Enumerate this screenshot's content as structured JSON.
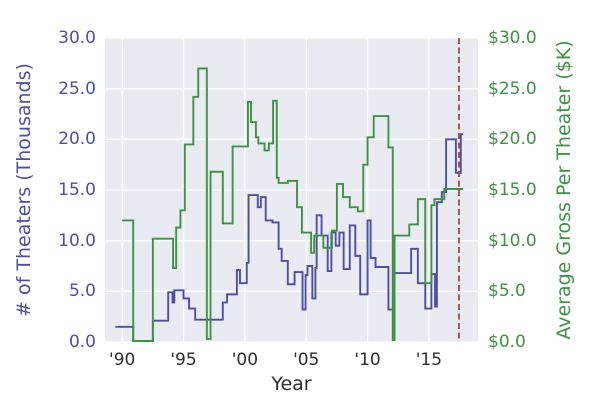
{
  "figure": {
    "background": "#ffffff",
    "plot_background": "#eaeaf2",
    "gridline_color": "#ffffff"
  },
  "chart_data": {
    "type": "line",
    "subtype": "step-post",
    "title": "",
    "xlabel": "Year",
    "ylabel_left": "# of Theaters (Thousands)",
    "ylabel_right": "Average Gross Per Theater ($K)",
    "xlim": [
      1988.6,
      2019.0
    ],
    "ylim_left": [
      0,
      30
    ],
    "ylim_right": [
      0,
      30
    ],
    "grid": true,
    "legend": "none",
    "x_ticks": [
      {
        "value": 1990,
        "label": "'90"
      },
      {
        "value": 1995,
        "label": "'95"
      },
      {
        "value": 2000,
        "label": "'00"
      },
      {
        "value": 2005,
        "label": "'05"
      },
      {
        "value": 2010,
        "label": "'10"
      },
      {
        "value": 2015,
        "label": "'15"
      }
    ],
    "y_ticks_left": [
      {
        "value": 0,
        "label": "0.0"
      },
      {
        "value": 5,
        "label": "5.0"
      },
      {
        "value": 10,
        "label": "10.0"
      },
      {
        "value": 15,
        "label": "15.0"
      },
      {
        "value": 20,
        "label": "20.0"
      },
      {
        "value": 25,
        "label": "25.0"
      },
      {
        "value": 30,
        "label": "30.0"
      }
    ],
    "y_ticks_right": [
      {
        "value": 0,
        "label": "$0.0"
      },
      {
        "value": 5,
        "label": "$5.0"
      },
      {
        "value": 10,
        "label": "$10.0"
      },
      {
        "value": 15,
        "label": "$15.0"
      },
      {
        "value": 20,
        "label": "$20.0"
      },
      {
        "value": 25,
        "label": "$25.0"
      },
      {
        "value": 30,
        "label": "$30.0"
      }
    ],
    "series": [
      {
        "name": "# of Theaters (Thousands)",
        "axis": "left",
        "color": "#4e4fa2",
        "points": [
          [
            1989.45,
            1.5
          ],
          [
            1990.9,
            0.1
          ],
          [
            1992.5,
            2.1
          ],
          [
            1993.75,
            4.9
          ],
          [
            1994.1,
            3.9
          ],
          [
            1994.25,
            5.1
          ],
          [
            1995.0,
            4.3
          ],
          [
            1995.45,
            3.3
          ],
          [
            1995.95,
            2.2
          ],
          [
            1998.2,
            3.9
          ],
          [
            1998.55,
            4.7
          ],
          [
            1999.35,
            7.1
          ],
          [
            1999.6,
            5.8
          ],
          [
            2000.15,
            7.8
          ],
          [
            2000.3,
            14.5
          ],
          [
            2001.05,
            13.3
          ],
          [
            2001.3,
            14.3
          ],
          [
            2001.7,
            12.0
          ],
          [
            2002.25,
            11.8
          ],
          [
            2002.75,
            9.2
          ],
          [
            2003.0,
            8.0
          ],
          [
            2003.5,
            5.7
          ],
          [
            2004.05,
            6.9
          ],
          [
            2004.7,
            3.2
          ],
          [
            2004.95,
            6.6
          ],
          [
            2005.1,
            7.5
          ],
          [
            2005.5,
            4.3
          ],
          [
            2005.75,
            7.3
          ],
          [
            2005.85,
            12.5
          ],
          [
            2006.25,
            10.5
          ],
          [
            2006.75,
            7.0
          ],
          [
            2007.05,
            10.8
          ],
          [
            2007.4,
            9.5
          ],
          [
            2007.7,
            10.8
          ],
          [
            2008.05,
            7.2
          ],
          [
            2008.55,
            11.5
          ],
          [
            2009.0,
            8.5
          ],
          [
            2009.4,
            4.7
          ],
          [
            2010.0,
            12.0
          ],
          [
            2010.25,
            8.3
          ],
          [
            2010.65,
            7.4
          ],
          [
            2011.7,
            3.2
          ],
          [
            2012.1,
            6.8
          ],
          [
            2013.55,
            9.2
          ],
          [
            2014.1,
            5.8
          ],
          [
            2014.7,
            3.3
          ],
          [
            2015.2,
            6.7
          ],
          [
            2015.5,
            3.5
          ],
          [
            2015.65,
            13.8
          ],
          [
            2016.05,
            14.8
          ],
          [
            2016.4,
            20.0
          ],
          [
            2017.2,
            16.7
          ],
          [
            2017.6,
            20.5
          ],
          [
            2017.78,
            20.5
          ]
        ]
      },
      {
        "name": "Average Gross Per Theater ($K)",
        "axis": "right",
        "color": "#3e9245",
        "points": [
          [
            1990.0,
            12.0
          ],
          [
            1990.9,
            0.1
          ],
          [
            1992.5,
            10.2
          ],
          [
            1994.15,
            7.3
          ],
          [
            1994.4,
            11.3
          ],
          [
            1994.75,
            13.0
          ],
          [
            1995.1,
            19.5
          ],
          [
            1995.8,
            24.2
          ],
          [
            1996.2,
            27.0
          ],
          [
            1996.9,
            0.3
          ],
          [
            1997.2,
            16.8
          ],
          [
            1998.2,
            11.7
          ],
          [
            1999.0,
            19.3
          ],
          [
            2000.25,
            23.7
          ],
          [
            2000.5,
            21.7
          ],
          [
            2000.9,
            20.2
          ],
          [
            2001.1,
            19.6
          ],
          [
            2001.6,
            18.9
          ],
          [
            2001.95,
            19.6
          ],
          [
            2002.3,
            23.8
          ],
          [
            2002.6,
            16.2
          ],
          [
            2002.75,
            15.7
          ],
          [
            2003.5,
            15.9
          ],
          [
            2004.25,
            13.3
          ],
          [
            2004.65,
            10.8
          ],
          [
            2005.4,
            8.8
          ],
          [
            2005.65,
            10.5
          ],
          [
            2006.4,
            9.3
          ],
          [
            2007.1,
            11.0
          ],
          [
            2007.5,
            15.6
          ],
          [
            2008.0,
            14.3
          ],
          [
            2008.55,
            13.3
          ],
          [
            2009.2,
            12.9
          ],
          [
            2009.65,
            17.5
          ],
          [
            2010.0,
            20.2
          ],
          [
            2010.5,
            22.3
          ],
          [
            2011.7,
            19.2
          ],
          [
            2012.05,
            0.2
          ],
          [
            2012.2,
            10.5
          ],
          [
            2013.4,
            11.6
          ],
          [
            2014.1,
            14.1
          ],
          [
            2014.7,
            5.8
          ],
          [
            2015.2,
            13.5
          ],
          [
            2015.45,
            14.1
          ],
          [
            2016.25,
            15.1
          ],
          [
            2017.78,
            15.1
          ]
        ]
      }
    ],
    "annotations": [
      {
        "type": "vline",
        "x": 2017.45,
        "style": "dashed",
        "color": "#a0493e"
      }
    ]
  }
}
